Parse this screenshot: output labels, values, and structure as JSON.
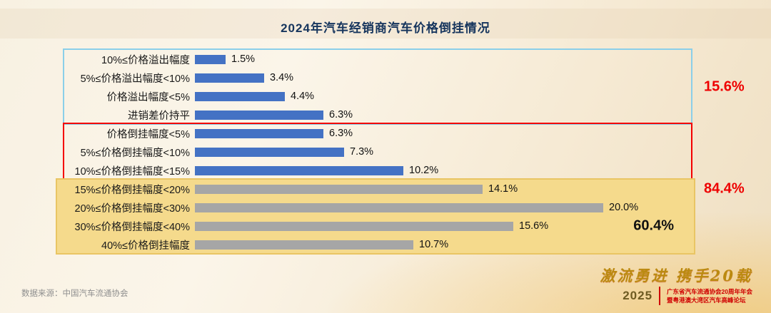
{
  "page": {
    "title": "2024年汽车经销商汽车价格倒挂情况",
    "source": "数据来源：中国汽车流通协会"
  },
  "chart_data": {
    "type": "bar",
    "orientation": "horizontal",
    "title": "2024年汽车经销商汽车价格倒挂情况",
    "xlim": [
      0,
      22
    ],
    "grid": false,
    "legend": false,
    "categories": [
      "10%≤价格溢出幅度",
      "5%≤价格溢出幅度<10%",
      "价格溢出幅度<5%",
      "进销差价持平",
      "价格倒挂幅度<5%",
      "5%≤价格倒挂幅度<10%",
      "10%≤价格倒挂幅度<15%",
      "15%≤价格倒挂幅度<20%",
      "20%≤价格倒挂幅度<30%",
      "30%≤价格倒挂幅度<40%",
      "40%≤价格倒挂幅度"
    ],
    "values": [
      1.5,
      3.4,
      4.4,
      6.3,
      6.3,
      7.3,
      10.2,
      14.1,
      20.0,
      15.6,
      10.7
    ],
    "value_labels": [
      "1.5%",
      "3.4%",
      "4.4%",
      "6.3%",
      "6.3%",
      "7.3%",
      "10.2%",
      "14.1%",
      "20.0%",
      "15.6%",
      "10.7%"
    ],
    "bar_colors": [
      "#4472c4",
      "#4472c4",
      "#4472c4",
      "#4472c4",
      "#4472c4",
      "#4472c4",
      "#4472c4",
      "#a6a6a6",
      "#a6a6a6",
      "#a6a6a6",
      "#a6a6a6"
    ],
    "group_boxes": [
      {
        "rows": [
          0,
          3
        ],
        "border_color": "#8bcfe9",
        "fill": null
      },
      {
        "rows": [
          4,
          10
        ],
        "border_color": "#f40000",
        "fill": null
      },
      {
        "rows": [
          7,
          10
        ],
        "border_color": "#e9c564",
        "fill": "#f5da8c"
      }
    ],
    "annotations": [
      {
        "text": "15.6%",
        "color": "#ee0000",
        "rows": [
          0,
          3
        ],
        "placement": "outside-right"
      },
      {
        "text": "84.4%",
        "color": "#ee0000",
        "rows": [
          4,
          10
        ],
        "placement": "outside-right"
      },
      {
        "text": "60.4%",
        "color": "#111111",
        "rows": [
          9,
          9
        ],
        "placement": "inside-right"
      }
    ]
  },
  "footer": {
    "slogan": "激流勇进  携手20载",
    "year": "2025",
    "event_line1": "广东省汽车流通协会20周年年会",
    "event_line2": "暨粤港澳大湾区汽车高峰论坛"
  }
}
